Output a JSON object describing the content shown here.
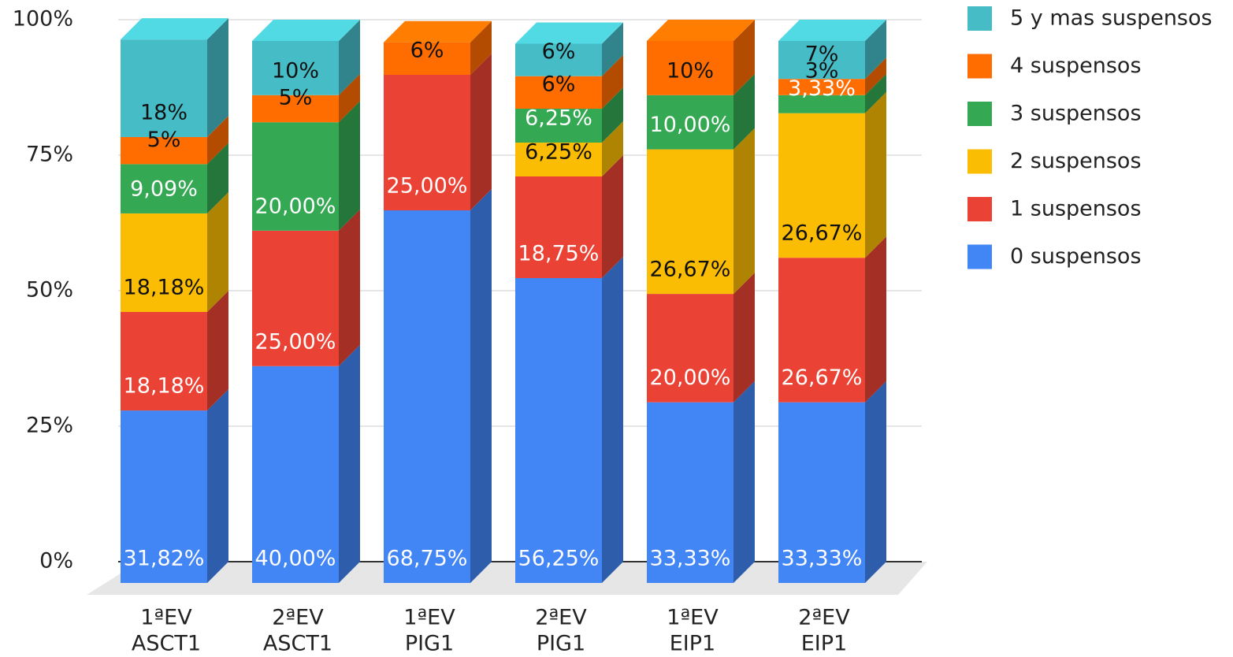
{
  "chart_data": {
    "type": "bar3d_stacked",
    "categories": [
      [
        "1ªEV",
        "ASCT1"
      ],
      [
        "2ªEV",
        "ASCT1"
      ],
      [
        "1ªEV",
        "PIG1"
      ],
      [
        "2ªEV",
        "PIG1"
      ],
      [
        "1ªEV",
        "EIP1"
      ],
      [
        "2ªEV",
        "EIP1"
      ]
    ],
    "series": [
      {
        "name": "0 suspensos",
        "color": "#4285f4",
        "values": [
          31.82,
          40,
          68.75,
          56.25,
          33.33,
          33.33
        ],
        "value_labels": [
          "31,82%",
          "40,00%",
          "68,75%",
          "56,25%",
          "33,33%",
          "33,33%"
        ]
      },
      {
        "name": "1 suspensos",
        "color": "#ea4335",
        "values": [
          18.18,
          25,
          25,
          18.75,
          20,
          26.67
        ],
        "value_labels": [
          "18,18%",
          "25,00%",
          "25,00%",
          "18,75%",
          "20,00%",
          "26,67%"
        ]
      },
      {
        "name": "2 suspensos",
        "color": "#fbbc04",
        "values": [
          18.18,
          null,
          null,
          6.25,
          26.67,
          26.67
        ],
        "value_labels": [
          "18,18%",
          null,
          null,
          "6,25%",
          "26,67%",
          "26,67%"
        ]
      },
      {
        "name": "3 suspensos",
        "color": "#34a853",
        "values": [
          9.09,
          20,
          null,
          6.25,
          10,
          3.33
        ],
        "value_labels": [
          "9,09%",
          "20,00%",
          null,
          "6,25%",
          "10,00%",
          "3,33%"
        ]
      },
      {
        "name": "4 suspensos",
        "color": "#ff6d01",
        "values": [
          5,
          5,
          6,
          6,
          10,
          3
        ],
        "value_labels": [
          "5%",
          "5%",
          "6%",
          "6%",
          "10%",
          "3%"
        ]
      },
      {
        "name": "5 y mas suspensos",
        "color": "#46bdc6",
        "values": [
          18,
          10,
          null,
          6,
          null,
          7
        ],
        "value_labels": [
          "18%",
          "10%",
          null,
          "6%",
          null,
          "7%"
        ]
      }
    ],
    "ylim": [
      0,
      100
    ],
    "yticks": [
      {
        "value": 0,
        "label": "0%"
      },
      {
        "value": 25,
        "label": "25%"
      },
      {
        "value": 50,
        "label": "50%"
      },
      {
        "value": 75,
        "label": "75%"
      },
      {
        "value": 100,
        "label": "100%"
      }
    ],
    "grid": true,
    "legend": "right"
  }
}
